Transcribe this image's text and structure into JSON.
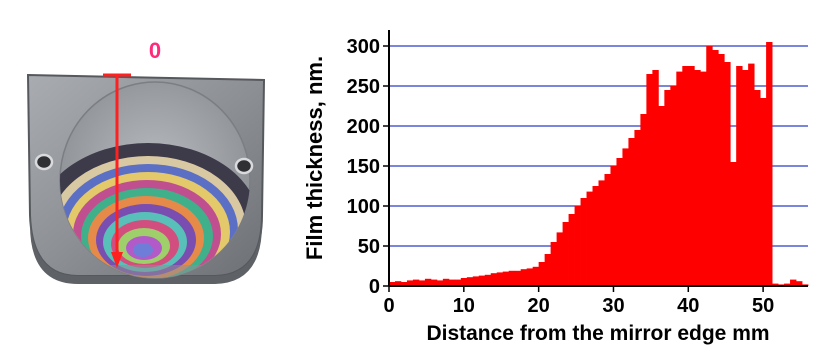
{
  "photo": {
    "marker_label": "0",
    "colors": {
      "marker": "#ff2020",
      "label": "#ff2a7a",
      "plate": "#8e9196"
    }
  },
  "chart_data": {
    "type": "bar",
    "title": "",
    "xlabel": "Distance from the mirror edge mm",
    "ylabel": "Film thickness, nm.",
    "xlim": [
      0,
      56
    ],
    "ylim": [
      0,
      320
    ],
    "xticks": [
      0,
      10,
      20,
      30,
      40,
      50
    ],
    "yticks": [
      0,
      50,
      100,
      150,
      200,
      250,
      300
    ],
    "grid": "horizontal",
    "bar_color": "#ff0000",
    "grid_color": "#2a3cc8",
    "bin_width": 0.8,
    "x": [
      0.4,
      1.2,
      2.0,
      2.8,
      3.6,
      4.4,
      5.2,
      6.0,
      6.8,
      7.6,
      8.4,
      9.2,
      10.0,
      10.8,
      11.6,
      12.4,
      13.2,
      14.0,
      14.8,
      15.6,
      16.4,
      17.2,
      18.0,
      18.8,
      19.6,
      20.4,
      21.2,
      22.0,
      22.8,
      23.6,
      24.4,
      25.2,
      26.0,
      26.8,
      27.6,
      28.4,
      29.2,
      30.0,
      30.8,
      31.6,
      32.4,
      33.2,
      34.0,
      34.8,
      35.6,
      36.4,
      37.2,
      38.0,
      38.8,
      39.6,
      40.4,
      41.2,
      42.0,
      42.8,
      43.6,
      44.4,
      45.2,
      46.0,
      46.8,
      47.6,
      48.4,
      49.2,
      50.0,
      50.8,
      51.6,
      52.4,
      53.2,
      54.0,
      54.8,
      55.6
    ],
    "values": [
      5,
      6,
      5,
      7,
      8,
      7,
      9,
      8,
      7,
      9,
      8,
      8,
      10,
      11,
      12,
      13,
      14,
      16,
      17,
      18,
      19,
      19,
      21,
      22,
      24,
      30,
      40,
      55,
      67,
      80,
      90,
      100,
      110,
      118,
      125,
      132,
      140,
      150,
      160,
      172,
      185,
      195,
      215,
      265,
      270,
      225,
      245,
      250,
      268,
      275,
      275,
      270,
      268,
      300,
      295,
      290,
      280,
      155,
      275,
      270,
      278,
      245,
      235,
      305,
      3,
      2,
      3,
      8,
      6,
      2
    ]
  }
}
